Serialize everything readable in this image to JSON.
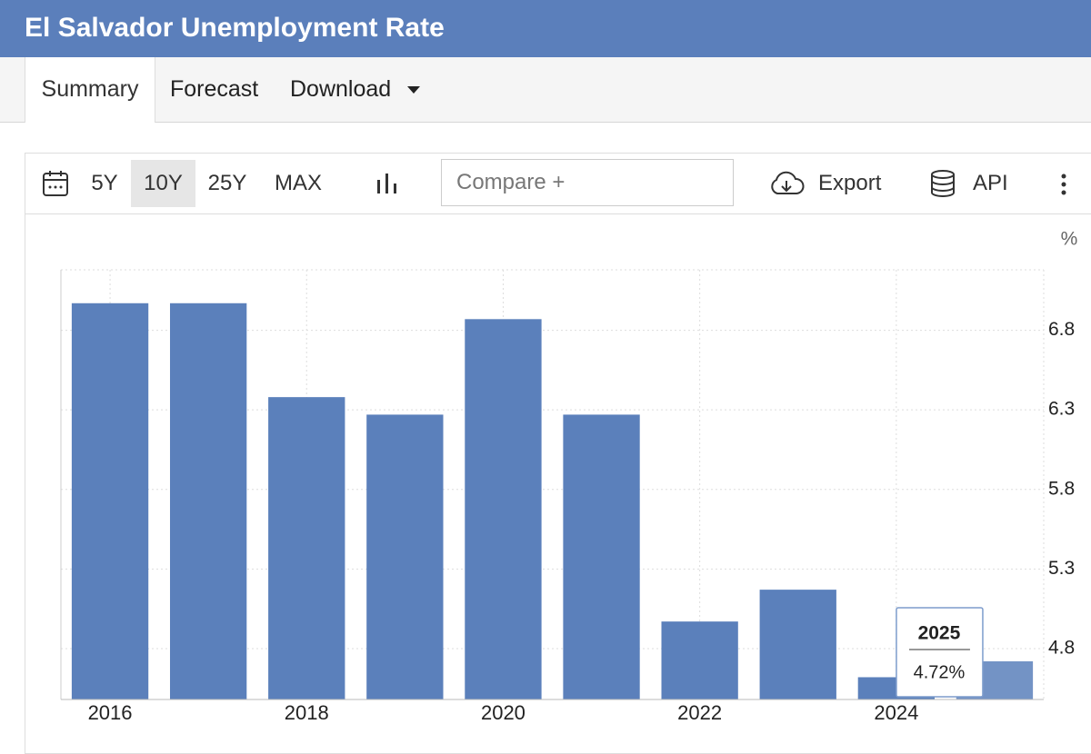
{
  "header": {
    "title": "El Salvador Unemployment Rate"
  },
  "tabs": [
    "Summary",
    "Forecast",
    "Download"
  ],
  "toolbar": {
    "ranges": [
      "5Y",
      "10Y",
      "25Y",
      "MAX"
    ],
    "compare": "Compare +",
    "export": "Export",
    "api": "API"
  },
  "chart_data": {
    "type": "bar",
    "ylabel": "%",
    "x": [
      2016,
      2017,
      2018,
      2019,
      2020,
      2021,
      2022,
      2023,
      2024,
      2025
    ],
    "values": [
      6.97,
      6.97,
      6.38,
      6.27,
      6.87,
      6.27,
      4.97,
      5.17,
      4.62,
      4.72
    ],
    "value_labels": [
      null,
      null,
      null,
      null,
      null,
      null,
      null,
      null,
      null,
      "4.72%"
    ],
    "color": "#5b80bb",
    "xlim": [
      2015.5,
      2025.5
    ],
    "xticks": [
      2016,
      2018,
      2020,
      2022,
      2024
    ],
    "ylim": [
      4.48,
      7.18
    ],
    "yticks": [
      4.8,
      5.3,
      5.8,
      6.3,
      6.8
    ],
    "grid": true
  }
}
